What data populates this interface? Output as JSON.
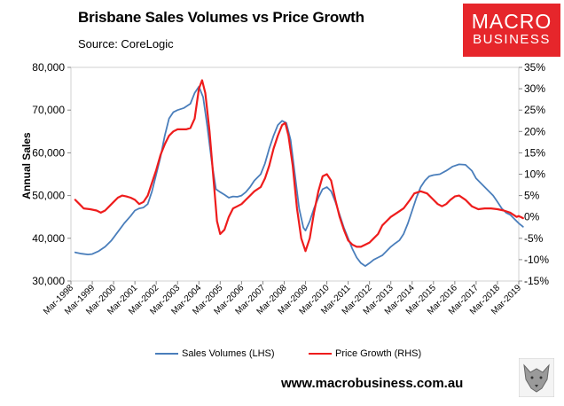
{
  "header": {
    "title": "Brisbane Sales Volumes vs Price Growth",
    "source": "Source: CoreLogic"
  },
  "logo": {
    "line1": "MACRO",
    "line2": "BUSINESS",
    "color": "#e6262b"
  },
  "footer": {
    "website": "www.macrobusiness.com.au"
  },
  "wolf_icon": "wolf-logo-icon",
  "chart_data": {
    "type": "line",
    "title": "Brisbane Sales Volumes vs Price Growth",
    "ylabel": "Annual Sales",
    "ylim_left": [
      30000,
      80000
    ],
    "ylim_right": [
      -15,
      35
    ],
    "yticks_left": [
      "30,000",
      "40,000",
      "50,000",
      "60,000",
      "70,000",
      "80,000"
    ],
    "yticks_right": [
      "-15%",
      "-10%",
      "-5%",
      "0%",
      "5%",
      "10%",
      "15%",
      "20%",
      "25%",
      "30%",
      "35%"
    ],
    "xticks": [
      "Mar-1998",
      "Mar-1999",
      "Mar-2000",
      "Mar-2001",
      "Mar-2002",
      "Mar-2003",
      "Mar-2004",
      "Mar-2005",
      "Mar-2006",
      "Mar-2007",
      "Mar-2008",
      "Mar-2009",
      "Mar-2010",
      "Mar-2011",
      "Mar-2012",
      "Mar-2013",
      "Mar-2014",
      "Mar-2015",
      "Mar-2016",
      "Mar-2017",
      "Mar-2018",
      "Mar-2019"
    ],
    "x_start_year": 1998,
    "legend_position": "bottom",
    "series": [
      {
        "name": "Sales Volumes (LHS)",
        "axis": "left",
        "color": "#4a7ebb",
        "points": [
          [
            1998.2,
            36700
          ],
          [
            1998.5,
            36400
          ],
          [
            1998.8,
            36200
          ],
          [
            1999.0,
            36300
          ],
          [
            1999.3,
            37000
          ],
          [
            1999.6,
            38000
          ],
          [
            1999.9,
            39500
          ],
          [
            2000.2,
            41500
          ],
          [
            2000.5,
            43500
          ],
          [
            2000.8,
            45200
          ],
          [
            2001.0,
            46500
          ],
          [
            2001.2,
            47000
          ],
          [
            2001.4,
            47200
          ],
          [
            2001.6,
            48000
          ],
          [
            2001.8,
            51000
          ],
          [
            2002.0,
            55000
          ],
          [
            2002.2,
            59000
          ],
          [
            2002.4,
            64000
          ],
          [
            2002.6,
            68000
          ],
          [
            2002.8,
            69500
          ],
          [
            2003.0,
            70000
          ],
          [
            2003.3,
            70500
          ],
          [
            2003.6,
            71500
          ],
          [
            2003.8,
            74000
          ],
          [
            2004.0,
            75500
          ],
          [
            2004.2,
            73000
          ],
          [
            2004.4,
            66000
          ],
          [
            2004.6,
            58000
          ],
          [
            2004.8,
            51500
          ],
          [
            2005.0,
            50800
          ],
          [
            2005.2,
            50200
          ],
          [
            2005.4,
            49500
          ],
          [
            2005.6,
            49800
          ],
          [
            2005.8,
            49700
          ],
          [
            2006.0,
            50000
          ],
          [
            2006.2,
            50800
          ],
          [
            2006.4,
            52000
          ],
          [
            2006.6,
            53500
          ],
          [
            2006.9,
            55000
          ],
          [
            2007.1,
            57500
          ],
          [
            2007.3,
            61000
          ],
          [
            2007.5,
            64000
          ],
          [
            2007.7,
            66500
          ],
          [
            2007.9,
            67500
          ],
          [
            2008.1,
            67000
          ],
          [
            2008.3,
            63000
          ],
          [
            2008.5,
            55000
          ],
          [
            2008.7,
            47000
          ],
          [
            2008.9,
            42500
          ],
          [
            2009.0,
            41800
          ],
          [
            2009.2,
            44000
          ],
          [
            2009.4,
            47000
          ],
          [
            2009.6,
            49500
          ],
          [
            2009.8,
            51500
          ],
          [
            2010.0,
            52000
          ],
          [
            2010.2,
            51000
          ],
          [
            2010.4,
            48500
          ],
          [
            2010.6,
            45500
          ],
          [
            2010.8,
            42500
          ],
          [
            2011.0,
            40000
          ],
          [
            2011.2,
            37500
          ],
          [
            2011.4,
            35500
          ],
          [
            2011.6,
            34200
          ],
          [
            2011.8,
            33500
          ],
          [
            2012.0,
            34200
          ],
          [
            2012.2,
            35000
          ],
          [
            2012.4,
            35500
          ],
          [
            2012.6,
            36000
          ],
          [
            2012.8,
            37000
          ],
          [
            2013.0,
            38000
          ],
          [
            2013.2,
            38800
          ],
          [
            2013.4,
            39500
          ],
          [
            2013.6,
            41000
          ],
          [
            2013.8,
            43500
          ],
          [
            2014.0,
            46500
          ],
          [
            2014.2,
            49500
          ],
          [
            2014.4,
            52000
          ],
          [
            2014.6,
            53500
          ],
          [
            2014.8,
            54500
          ],
          [
            2015.0,
            54800
          ],
          [
            2015.3,
            55000
          ],
          [
            2015.6,
            55800
          ],
          [
            2015.9,
            56800
          ],
          [
            2016.2,
            57300
          ],
          [
            2016.5,
            57200
          ],
          [
            2016.8,
            55800
          ],
          [
            2017.0,
            54000
          ],
          [
            2017.2,
            53000
          ],
          [
            2017.5,
            51500
          ],
          [
            2017.8,
            50000
          ],
          [
            2018.0,
            48500
          ],
          [
            2018.2,
            47000
          ],
          [
            2018.4,
            46000
          ],
          [
            2018.6,
            45500
          ],
          [
            2018.8,
            44500
          ],
          [
            2019.0,
            43500
          ],
          [
            2019.2,
            42700
          ]
        ]
      },
      {
        "name": "Price Growth (RHS)",
        "axis": "right",
        "color": "#ee1c1c",
        "points": [
          [
            1998.2,
            4
          ],
          [
            1998.4,
            3
          ],
          [
            1998.6,
            2
          ],
          [
            1998.9,
            1.8
          ],
          [
            1999.2,
            1.5
          ],
          [
            1999.4,
            1
          ],
          [
            1999.6,
            1.5
          ],
          [
            1999.8,
            2.5
          ],
          [
            2000.0,
            3.5
          ],
          [
            2000.2,
            4.5
          ],
          [
            2000.4,
            5
          ],
          [
            2000.6,
            4.8
          ],
          [
            2000.8,
            4.5
          ],
          [
            2001.0,
            4
          ],
          [
            2001.2,
            3
          ],
          [
            2001.4,
            3.5
          ],
          [
            2001.6,
            5
          ],
          [
            2001.8,
            8
          ],
          [
            2002.0,
            11
          ],
          [
            2002.2,
            14.5
          ],
          [
            2002.4,
            17
          ],
          [
            2002.6,
            19
          ],
          [
            2002.8,
            20
          ],
          [
            2003.0,
            20.5
          ],
          [
            2003.2,
            20.5
          ],
          [
            2003.4,
            20.5
          ],
          [
            2003.6,
            20.8
          ],
          [
            2003.8,
            23
          ],
          [
            2004.0,
            30
          ],
          [
            2004.15,
            32
          ],
          [
            2004.3,
            29
          ],
          [
            2004.5,
            20
          ],
          [
            2004.7,
            8
          ],
          [
            2004.85,
            -1
          ],
          [
            2005.0,
            -4
          ],
          [
            2005.2,
            -3
          ],
          [
            2005.4,
            0
          ],
          [
            2005.6,
            2
          ],
          [
            2005.8,
            2.5
          ],
          [
            2006.0,
            3
          ],
          [
            2006.2,
            4
          ],
          [
            2006.4,
            5
          ],
          [
            2006.6,
            6
          ],
          [
            2006.9,
            7
          ],
          [
            2007.1,
            9
          ],
          [
            2007.3,
            12
          ],
          [
            2007.5,
            16
          ],
          [
            2007.7,
            19
          ],
          [
            2007.9,
            21.5
          ],
          [
            2008.05,
            22
          ],
          [
            2008.2,
            19
          ],
          [
            2008.4,
            12
          ],
          [
            2008.6,
            2
          ],
          [
            2008.8,
            -5
          ],
          [
            2009.0,
            -8
          ],
          [
            2009.2,
            -5
          ],
          [
            2009.4,
            1
          ],
          [
            2009.6,
            6
          ],
          [
            2009.8,
            9.5
          ],
          [
            2010.0,
            10
          ],
          [
            2010.2,
            8.5
          ],
          [
            2010.4,
            4
          ],
          [
            2010.6,
            0
          ],
          [
            2010.8,
            -3
          ],
          [
            2011.0,
            -5.5
          ],
          [
            2011.2,
            -6.5
          ],
          [
            2011.4,
            -7
          ],
          [
            2011.6,
            -7
          ],
          [
            2011.8,
            -6.5
          ],
          [
            2012.0,
            -6
          ],
          [
            2012.2,
            -5
          ],
          [
            2012.4,
            -4
          ],
          [
            2012.6,
            -2
          ],
          [
            2012.8,
            -1
          ],
          [
            2013.0,
            0
          ],
          [
            2013.3,
            1
          ],
          [
            2013.6,
            2
          ],
          [
            2013.9,
            4
          ],
          [
            2014.1,
            5.5
          ],
          [
            2014.4,
            6
          ],
          [
            2014.7,
            5.5
          ],
          [
            2015.0,
            4
          ],
          [
            2015.2,
            3
          ],
          [
            2015.4,
            2.5
          ],
          [
            2015.6,
            3
          ],
          [
            2015.8,
            4
          ],
          [
            2016.0,
            4.8
          ],
          [
            2016.2,
            5
          ],
          [
            2016.5,
            4
          ],
          [
            2016.8,
            2.5
          ],
          [
            2017.1,
            1.8
          ],
          [
            2017.4,
            2
          ],
          [
            2017.7,
            2
          ],
          [
            2018.0,
            1.8
          ],
          [
            2018.3,
            1.5
          ],
          [
            2018.6,
            1
          ],
          [
            2018.9,
            0
          ],
          [
            2019.0,
            0.2
          ],
          [
            2019.2,
            -0.3
          ]
        ]
      }
    ]
  }
}
